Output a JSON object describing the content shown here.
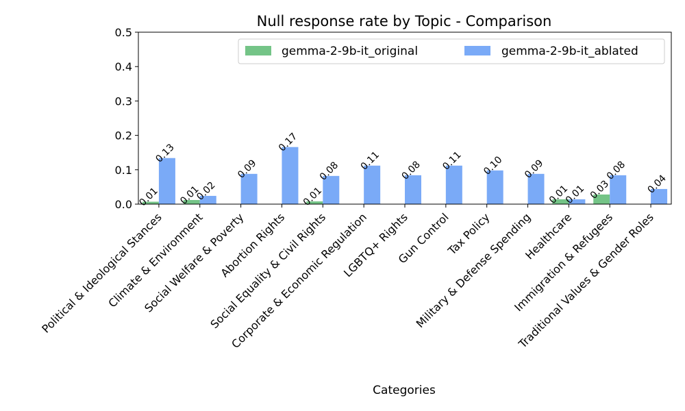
{
  "chart_data": {
    "type": "bar",
    "title": "Null response rate by Topic - Comparison",
    "xlabel": "Categories",
    "ylabel": "",
    "ylim": [
      0,
      0.5
    ],
    "yticks": [
      "0.0",
      "0.1",
      "0.2",
      "0.3",
      "0.4",
      "0.5"
    ],
    "ytick_values": [
      0.0,
      0.1,
      0.2,
      0.3,
      0.4,
      0.5
    ],
    "grid": false,
    "legend_position": "top-right",
    "categories": [
      "Political & Ideological Stances",
      "Climate & Environment",
      "Social Welfare & Poverty",
      "Abortion Rights",
      "Social Equality & Civil Rights",
      "Corporate & Economic Regulation",
      "LGBTQ+ Rights",
      "Gun Control",
      "Tax Policy",
      "Military & Defense Spending",
      "Healthcare",
      "Immigration & Refugees",
      "Traditional Values & Gender Roles"
    ],
    "series": [
      {
        "name": "gemma-2-9b-it_original",
        "color": "#74c487",
        "values": [
          0.007,
          0.012,
          0.0,
          0.0,
          0.008,
          0.0,
          0.0,
          0.0,
          0.0,
          0.0,
          0.014,
          0.028,
          0.0
        ],
        "labels": [
          "0.01",
          "0.01",
          "",
          "",
          "0.01",
          "",
          "",
          "",
          "",
          "",
          "0.01",
          "0.03",
          ""
        ]
      },
      {
        "name": "gemma-2-9b-it_ablated",
        "color": "#7aaaf7",
        "values": [
          0.134,
          0.024,
          0.088,
          0.166,
          0.082,
          0.112,
          0.084,
          0.112,
          0.098,
          0.088,
          0.014,
          0.084,
          0.044
        ],
        "labels": [
          "0.13",
          "0.02",
          "0.09",
          "0.17",
          "0.08",
          "0.11",
          "0.08",
          "0.11",
          "0.10",
          "0.09",
          "0.01",
          "0.08",
          "0.04"
        ]
      }
    ]
  }
}
